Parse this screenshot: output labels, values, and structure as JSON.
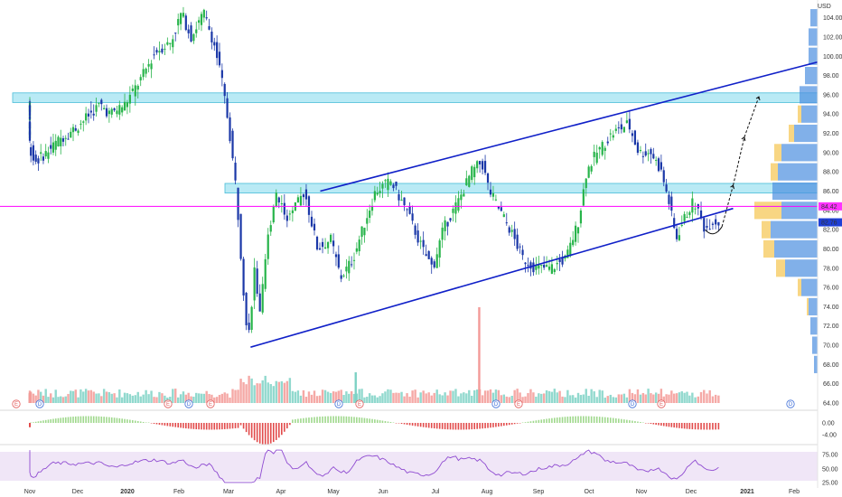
{
  "currency": "USD",
  "colors": {
    "up": "#27b44a",
    "down": "#1b38a8",
    "channel": "#1020c8",
    "zone": "#7fd8ec",
    "price_line": "#ff00ff",
    "current_tag": "#1f3fd6",
    "ref_tag": "#ff33ff",
    "vol_up": "#7ed2c5",
    "vol_down": "#f39a97",
    "macd_pos": "#9fd88c",
    "macd_neg": "#e24b4b",
    "rsi_line": "#8f4bd1",
    "rsi_band": "#eadcf4",
    "vp_yellow": "#f6c85a",
    "vp_blue": "#4c8ee0"
  },
  "price_axis": {
    "labels": [
      "104.00",
      "102.00",
      "100.00",
      "98.00",
      "96.00",
      "94.00",
      "92.00",
      "90.00",
      "88.00",
      "86.00",
      "84.00",
      "82.00",
      "80.00",
      "78.00",
      "76.00",
      "74.00",
      "72.00",
      "70.00",
      "68.00",
      "66.00",
      "64.00"
    ],
    "current_price": "82.76",
    "ref_price": "84.42"
  },
  "macd_axis": {
    "labels": [
      "0.00",
      "-4.00"
    ]
  },
  "rsi_axis": {
    "labels": [
      "75.00",
      "50.00",
      "25.00"
    ]
  },
  "time_axis": [
    "Nov",
    "Dec",
    "2020",
    "Feb",
    "Mar",
    "Apr",
    "May",
    "Jun",
    "Jul",
    "Aug",
    "Sep",
    "Oct",
    "Nov",
    "Dec",
    "2021",
    "Feb"
  ],
  "event_badges": [
    "E",
    "D",
    "E",
    "D",
    "E",
    "D",
    "E",
    "D",
    "E",
    "D",
    "E",
    "D",
    "E"
  ],
  "chart_data": {
    "type": "candlestick",
    "symbol_currency": "USD",
    "x": [
      "Nov 2019",
      "Dec 2019",
      "Jan 2020",
      "Feb 2020",
      "Mar 2020",
      "Apr 2020",
      "May 2020",
      "Jun 2020",
      "Jul 2020",
      "Aug 2020",
      "Sep 2020",
      "Oct 2020",
      "Nov 2020",
      "Dec 2020"
    ],
    "close_approx": [
      93,
      92,
      94,
      103,
      72,
      80,
      83,
      86,
      88,
      85,
      79,
      90,
      88,
      83
    ],
    "ylim": [
      64,
      105
    ],
    "current_price": 82.76,
    "reference_price": 84.42,
    "resistance_zones": [
      [
        95.2,
        96.2
      ],
      [
        85.8,
        86.8
      ]
    ],
    "channel": {
      "lower": {
        "from": [
          "Mar 2020",
          69.8
        ],
        "to": [
          "Jan 2021",
          84.2
        ]
      },
      "upper": {
        "from": [
          "Apr 2020",
          86.0
        ],
        "to": [
          "Feb 2021",
          99.4
        ]
      }
    },
    "projection_path": [
      82,
      87,
      92,
      96
    ],
    "indicators": [
      "Volume",
      "MACD",
      "RSI"
    ],
    "grid": false
  }
}
